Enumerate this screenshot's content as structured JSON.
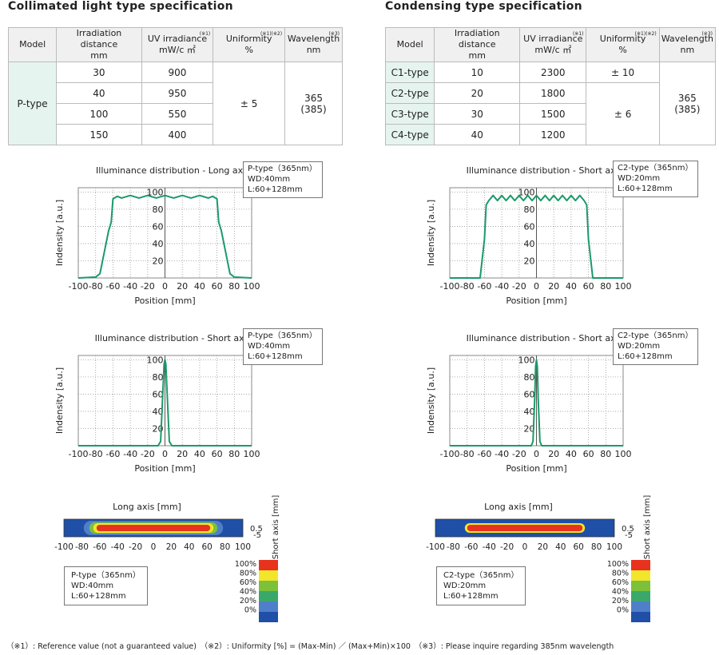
{
  "left": {
    "title": "Collimated light type specification",
    "headers": {
      "model": "Model",
      "distance": "Irradiation distance",
      "distance_unit": "mm",
      "irradiance": "UV irradiance",
      "irradiance_unit": "mW/c ㎡",
      "uniformity": "Uniformity",
      "uniformity_unit": "%",
      "wavelength": "Wavelength",
      "wavelength_unit": "nm",
      "note1": "(※1)",
      "note12": "(※1)(※2)",
      "note3": "(※3)"
    },
    "model": "P-type",
    "rows": [
      {
        "distance": "30",
        "irradiance": "900"
      },
      {
        "distance": "40",
        "irradiance": "950"
      },
      {
        "distance": "100",
        "irradiance": "550"
      },
      {
        "distance": "150",
        "irradiance": "400"
      }
    ],
    "uniformity": "± 5",
    "wavelength": "365",
    "wavelength_alt": "(385)",
    "legend": [
      "P-type（365nm）",
      "WD:40mm",
      "L:60+128mm"
    ]
  },
  "right": {
    "title": "Condensing type specification",
    "rows": [
      {
        "model": "C1-type",
        "distance": "10",
        "irradiance": "2300"
      },
      {
        "model": "C2-type",
        "distance": "20",
        "irradiance": "1800"
      },
      {
        "model": "C3-type",
        "distance": "30",
        "irradiance": "1500"
      },
      {
        "model": "C4-type",
        "distance": "40",
        "irradiance": "1200"
      }
    ],
    "uniformity_c1": "± 10",
    "uniformity_rest": "± 6",
    "wavelength": "365",
    "wavelength_alt": "(385)",
    "legend": [
      "C2-type（365nm）",
      "WD:20mm",
      "L:60+128mm"
    ]
  },
  "colorbar": {
    "labels": [
      "100%",
      "80%",
      "60%",
      "40%",
      "20%",
      "0%"
    ],
    "colors": [
      "#e8321e",
      "#f2e62c",
      "#7cc13a",
      "#3aa86a",
      "#4f7fc9",
      "#1f4fa6"
    ]
  },
  "footnote": "（※1）: Reference value (not a guaranteed value)　（※2）: Uniformity [%] = (Max-Min) ／ (Max+Min)×100　（※3）: Please inquire regarding 385nm wavelength",
  "chart_data": [
    {
      "type": "line",
      "title": "Illuminance distribution - Long axis",
      "xlabel": "Position [mm]",
      "ylabel": "Indensity [a.u.]",
      "xlim": [
        -100,
        100
      ],
      "ylim": [
        0,
        105
      ],
      "xticks": [
        "-100",
        "-80",
        "-60",
        "-40",
        "-20",
        "0",
        "20",
        "40",
        "60",
        "80",
        "100"
      ],
      "yticks": [
        "20",
        "40",
        "60",
        "80",
        "100"
      ],
      "grid": true,
      "color": "#1a9a6a",
      "x": [
        -100,
        -80,
        -75,
        -70,
        -65,
        -62,
        -60,
        -55,
        -50,
        -40,
        -30,
        -20,
        -10,
        0,
        10,
        20,
        30,
        40,
        50,
        55,
        60,
        62,
        65,
        70,
        75,
        80,
        100
      ],
      "y": [
        0,
        1,
        5,
        30,
        55,
        65,
        92,
        95,
        93,
        96,
        93,
        96,
        93,
        96,
        93,
        96,
        93,
        96,
        93,
        95,
        92,
        65,
        55,
        30,
        5,
        1,
        0
      ]
    },
    {
      "type": "line",
      "title": "Illuminance distribution - Short axis",
      "xlabel": "Position [mm]",
      "ylabel": "Indensity [a.u.]",
      "xlim": [
        -100,
        100
      ],
      "ylim": [
        0,
        105
      ],
      "xticks": [
        "-100",
        "-80",
        "-60",
        "-40",
        "-20",
        "0",
        "20",
        "40",
        "60",
        "80",
        "100"
      ],
      "yticks": [
        "20",
        "40",
        "60",
        "80",
        "100"
      ],
      "grid": true,
      "color": "#1a9a6a",
      "x": [
        -100,
        -8,
        -5,
        -3,
        -1,
        0,
        1,
        3,
        5,
        8,
        100
      ],
      "y": [
        0,
        0,
        5,
        50,
        95,
        100,
        95,
        50,
        5,
        0,
        0
      ]
    },
    {
      "type": "line",
      "title": "Illuminance distribution - Short axis",
      "xlabel": "Position [mm]",
      "ylabel": "Indensity [a.u.]",
      "xlim": [
        -100,
        100
      ],
      "ylim": [
        0,
        105
      ],
      "xticks": [
        "-100",
        "-80",
        "-60",
        "-40",
        "-20",
        "0",
        "20",
        "40",
        "60",
        "80",
        "100"
      ],
      "yticks": [
        "20",
        "40",
        "60",
        "80",
        "100"
      ],
      "grid": true,
      "color": "#1a9a6a",
      "x": [
        -100,
        -65,
        -60,
        -58,
        -55,
        -50,
        -45,
        -40,
        -35,
        -30,
        -25,
        -20,
        -15,
        -10,
        -5,
        0,
        5,
        10,
        15,
        20,
        25,
        30,
        35,
        40,
        45,
        50,
        55,
        58,
        60,
        65,
        100
      ],
      "y": [
        0,
        0,
        45,
        85,
        90,
        96,
        90,
        96,
        90,
        96,
        90,
        96,
        90,
        96,
        90,
        96,
        90,
        96,
        90,
        96,
        90,
        96,
        90,
        96,
        90,
        96,
        90,
        85,
        45,
        0,
        0
      ]
    },
    {
      "type": "line",
      "title": "Illuminance distribution - Short axis",
      "xlabel": "Position [mm]",
      "ylabel": "Indensity [a.u.]",
      "xlim": [
        -100,
        100
      ],
      "ylim": [
        0,
        105
      ],
      "xticks": [
        "-100",
        "-80",
        "-60",
        "-40",
        "-20",
        "0",
        "20",
        "40",
        "60",
        "80",
        "100"
      ],
      "yticks": [
        "20",
        "40",
        "60",
        "80",
        "100"
      ],
      "grid": true,
      "color": "#1a9a6a",
      "x": [
        -100,
        -6,
        -4,
        -2,
        -1,
        0,
        1,
        2,
        4,
        6,
        100
      ],
      "y": [
        0,
        0,
        5,
        55,
        92,
        100,
        92,
        55,
        5,
        0,
        0
      ]
    },
    {
      "type": "heatmap",
      "title": "Long axis [mm]",
      "ylabel": "Short axis [mm]",
      "xlim": [
        -100,
        100
      ],
      "xticks": [
        "-100",
        "-80",
        "-60",
        "-40",
        "-20",
        "0",
        "20",
        "40",
        "60",
        "80",
        "100"
      ],
      "yticks": [
        "0.5",
        "-5"
      ],
      "hot_extent": [
        -60,
        60
      ]
    },
    {
      "type": "heatmap",
      "title": "Long axis [mm]",
      "ylabel": "Short axis [mm]",
      "xlim": [
        -100,
        100
      ],
      "xticks": [
        "-100",
        "-80",
        "-60",
        "-40",
        "-20",
        "0",
        "20",
        "40",
        "60",
        "80",
        "100"
      ],
      "yticks": [
        "0.5",
        "-5"
      ],
      "hot_extent": [
        -60,
        60
      ]
    }
  ]
}
